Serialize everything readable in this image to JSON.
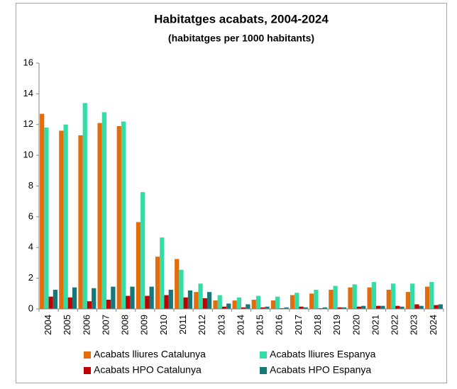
{
  "chart_data": {
    "type": "bar",
    "title": "Habitatges acabats, 2004-2024",
    "subtitle": "(habitatges per 1000 habitants)",
    "categories": [
      "2004",
      "2005",
      "2006",
      "2007",
      "2008",
      "2009",
      "2010",
      "2011",
      "2012",
      "2013",
      "2014",
      "2015",
      "2016",
      "2017",
      "2018",
      "2019",
      "2020",
      "2021",
      "2022",
      "2023",
      "2024"
    ],
    "series": [
      {
        "name": "Acabats lliures Catalunya",
        "color": "#e46c0a",
        "values": [
          12.7,
          11.6,
          11.3,
          12.1,
          11.9,
          5.65,
          3.4,
          3.25,
          1.1,
          0.55,
          0.55,
          0.6,
          0.55,
          0.9,
          1.0,
          1.25,
          1.4,
          1.4,
          1.25,
          1.1,
          1.45
        ]
      },
      {
        "name": "Acabats lliures Espanya",
        "color": "#33dda5",
        "values": [
          11.8,
          12.0,
          13.4,
          12.8,
          12.2,
          7.6,
          4.65,
          2.55,
          1.65,
          0.9,
          0.75,
          0.85,
          0.8,
          1.05,
          1.25,
          1.5,
          1.6,
          1.75,
          1.65,
          1.65,
          1.75
        ]
      },
      {
        "name": "Acabats HPO Catalunya",
        "color": "#c00000",
        "values": [
          0.8,
          0.75,
          0.5,
          0.6,
          0.85,
          0.85,
          0.9,
          0.75,
          0.7,
          0.15,
          0.1,
          0.1,
          0.05,
          0.15,
          0.05,
          0.1,
          0.15,
          0.2,
          0.2,
          0.3,
          0.25
        ]
      },
      {
        "name": "Acabats HPO Espanya",
        "color": "#17787a",
        "values": [
          1.25,
          1.4,
          1.35,
          1.45,
          1.45,
          1.45,
          1.25,
          1.2,
          1.1,
          0.35,
          0.3,
          0.15,
          0.1,
          0.1,
          0.1,
          0.1,
          0.2,
          0.2,
          0.15,
          0.2,
          0.3
        ]
      }
    ],
    "ylim": [
      0,
      16
    ],
    "yticks": [
      0,
      2,
      4,
      6,
      8,
      10,
      12,
      14,
      16
    ],
    "grid": false,
    "legend": "bottom"
  }
}
